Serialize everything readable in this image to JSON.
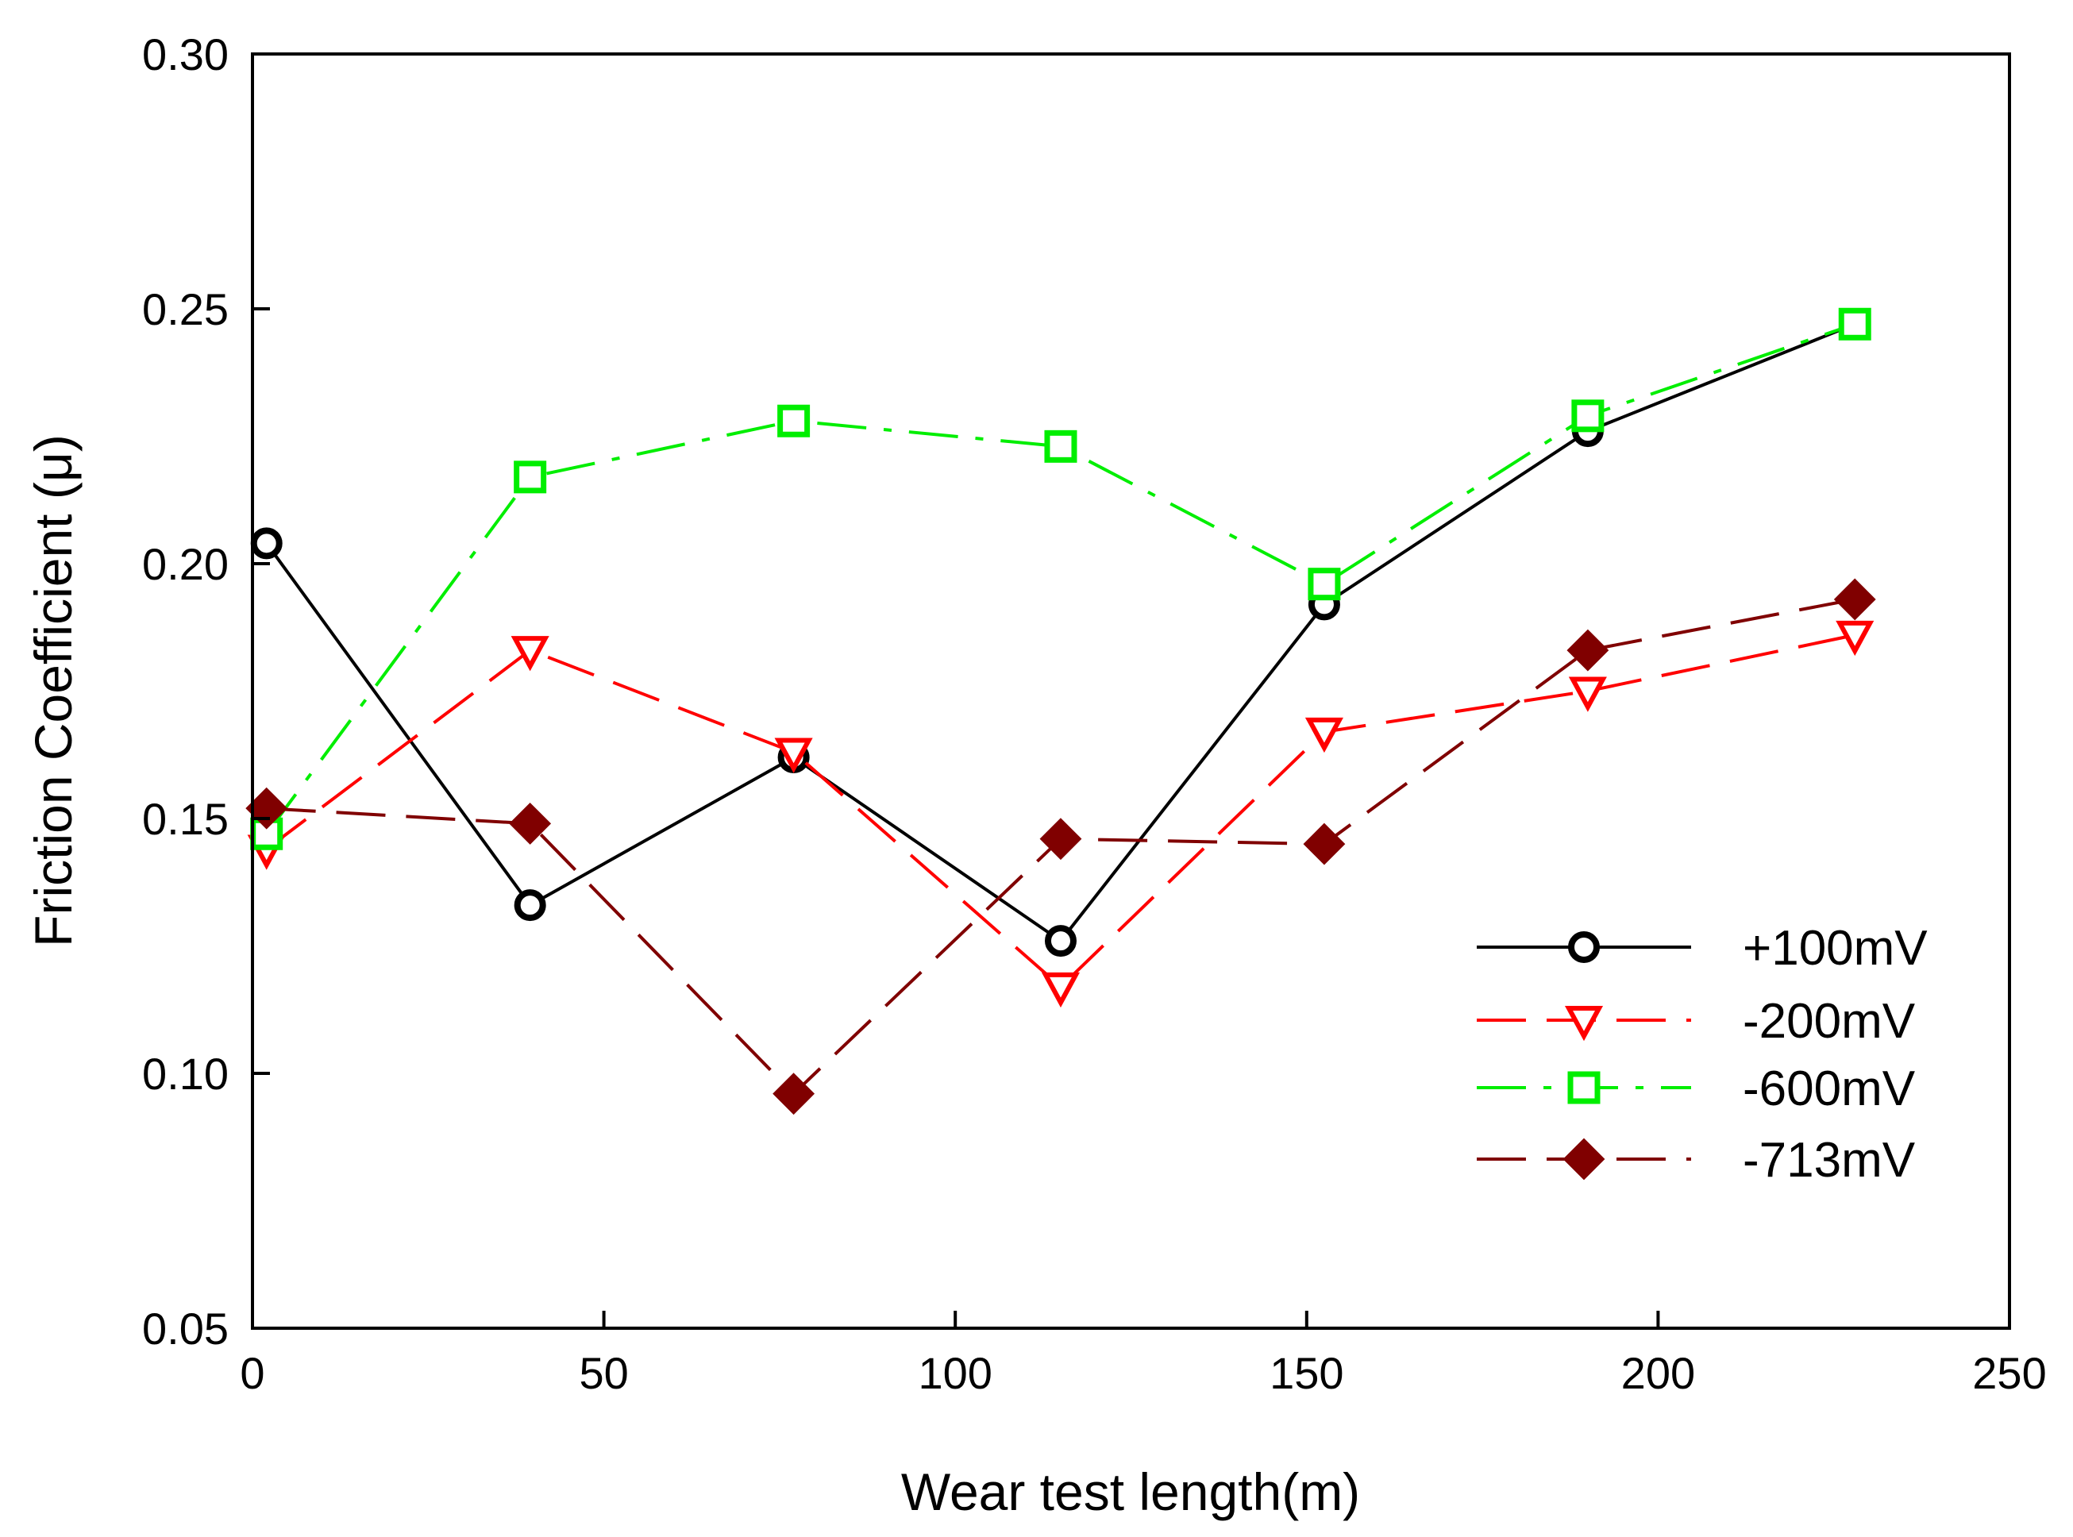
{
  "chart_data": {
    "type": "line",
    "title": "",
    "xlabel": "Wear test length(m)",
    "ylabel": "Friction Coefficient (μ)",
    "xlim": [
      0,
      250
    ],
    "ylim": [
      0.05,
      0.3
    ],
    "xticks": [
      0,
      50,
      100,
      150,
      200,
      250
    ],
    "xtick_labels": [
      "0",
      "50",
      "100",
      "150",
      "200",
      "250"
    ],
    "yticks": [
      0.05,
      0.1,
      0.15,
      0.2,
      0.25,
      0.3
    ],
    "ytick_labels": [
      "0.05",
      "0.10",
      "0.15",
      "0.20",
      "0.25",
      "0.30"
    ],
    "grid": false,
    "legend_position": "lower-right",
    "x": [
      2,
      39.5,
      77,
      115,
      152.5,
      190,
      228
    ],
    "series": [
      {
        "name": "+100mV",
        "color": "#000000",
        "marker": "circle-open",
        "dash": "solid",
        "values": [
          0.204,
          0.133,
          0.162,
          0.126,
          0.192,
          0.226,
          0.247
        ]
      },
      {
        "name": "-200mV",
        "color": "#ff0000",
        "marker": "triangle-down-open",
        "dash": "long-dash",
        "values": [
          0.144,
          0.183,
          0.163,
          0.117,
          0.167,
          0.175,
          0.186
        ]
      },
      {
        "name": "-600mV",
        "color": "#00ee00",
        "marker": "square-open",
        "dash": "dash-dot",
        "values": [
          0.147,
          0.217,
          0.228,
          0.223,
          0.196,
          0.229,
          0.247
        ]
      },
      {
        "name": "-713mV",
        "color": "#800000",
        "marker": "diamond-filled",
        "dash": "long-dash",
        "values": [
          0.152,
          0.149,
          0.096,
          0.146,
          0.145,
          0.183,
          0.193
        ]
      }
    ]
  }
}
